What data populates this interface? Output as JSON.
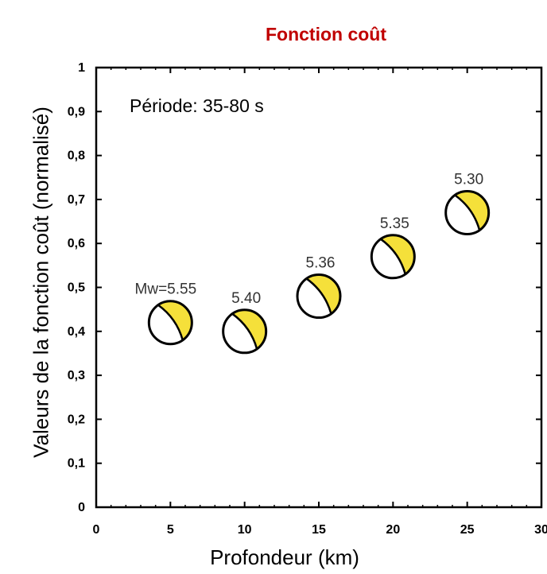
{
  "chart_data": {
    "type": "scatter",
    "title": "Fonction coût",
    "xlabel": "Profondeur (km)",
    "ylabel": "Valeurs de la fonction coût  (normalisé)",
    "annotation": "Période: 35-80 s",
    "xlim": [
      0,
      30
    ],
    "ylim": [
      0,
      1
    ],
    "x_ticks": [
      "0",
      "5",
      "10",
      "15",
      "20",
      "25",
      "30"
    ],
    "y_ticks": [
      "0",
      "0,1",
      "0,2",
      "0,3",
      "0,4",
      "0,5",
      "0,6",
      "0,7",
      "0,8",
      "0,9",
      "1"
    ],
    "grid": false,
    "marker": "focal-mechanism beachball",
    "colors": {
      "title": "#c00000",
      "beachball_fill": "#f5e03a",
      "axis": "#000000"
    },
    "points": [
      {
        "x": 5,
        "y": 0.42,
        "label": "Mw=5.55"
      },
      {
        "x": 10,
        "y": 0.4,
        "label": "5.40"
      },
      {
        "x": 15,
        "y": 0.48,
        "label": "5.36"
      },
      {
        "x": 20,
        "y": 0.57,
        "label": "5.35"
      },
      {
        "x": 25,
        "y": 0.67,
        "label": "5.30"
      }
    ]
  }
}
